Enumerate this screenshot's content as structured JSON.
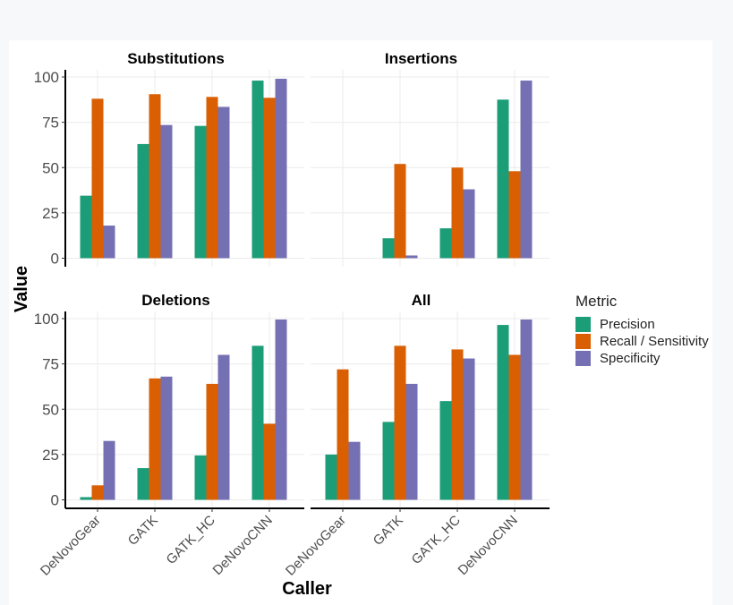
{
  "chart_data": {
    "type": "bar",
    "xlabel": "Caller",
    "ylabel": "Value",
    "ylim": [
      0,
      100
    ],
    "yticks": [
      0,
      25,
      50,
      75,
      100
    ],
    "grid": true,
    "legend_placement": "right",
    "legend_title": "Metric",
    "categories": [
      "DeNovoGear",
      "GATK",
      "GATK_HC",
      "DeNovoCNN"
    ],
    "metrics": [
      {
        "name": "Precision",
        "color": "#1b9e77"
      },
      {
        "name": "Recall / Sensitivity",
        "color": "#d95f02"
      },
      {
        "name": "Specificity",
        "color": "#7570b3"
      }
    ],
    "panels": [
      {
        "title": "Substitutions",
        "series": [
          {
            "name": "Precision",
            "values": [
              34.5,
              63,
              73,
              98
            ]
          },
          {
            "name": "Recall / Sensitivity",
            "values": [
              88,
              90.5,
              89,
              88.5
            ]
          },
          {
            "name": "Specificity",
            "values": [
              18,
              73.5,
              83.5,
              99
            ]
          }
        ]
      },
      {
        "title": "Insertions",
        "series": [
          {
            "name": "Precision",
            "values": [
              0,
              11,
              16.5,
              87.5
            ]
          },
          {
            "name": "Recall / Sensitivity",
            "values": [
              0,
              52,
              50,
              48
            ]
          },
          {
            "name": "Specificity",
            "values": [
              0,
              1.5,
              38,
              98
            ]
          }
        ]
      },
      {
        "title": "Deletions",
        "series": [
          {
            "name": "Precision",
            "values": [
              1.5,
              17.5,
              24.5,
              85
            ]
          },
          {
            "name": "Recall / Sensitivity",
            "values": [
              8,
              67,
              64,
              42
            ]
          },
          {
            "name": "Specificity",
            "values": [
              32.5,
              68,
              80,
              99.5
            ]
          }
        ]
      },
      {
        "title": "All",
        "series": [
          {
            "name": "Precision",
            "values": [
              25,
              43,
              54.5,
              96.5
            ]
          },
          {
            "name": "Recall / Sensitivity",
            "values": [
              72,
              85,
              83,
              80
            ]
          },
          {
            "name": "Specificity",
            "values": [
              32,
              64,
              78,
              99.5
            ]
          }
        ]
      }
    ]
  }
}
